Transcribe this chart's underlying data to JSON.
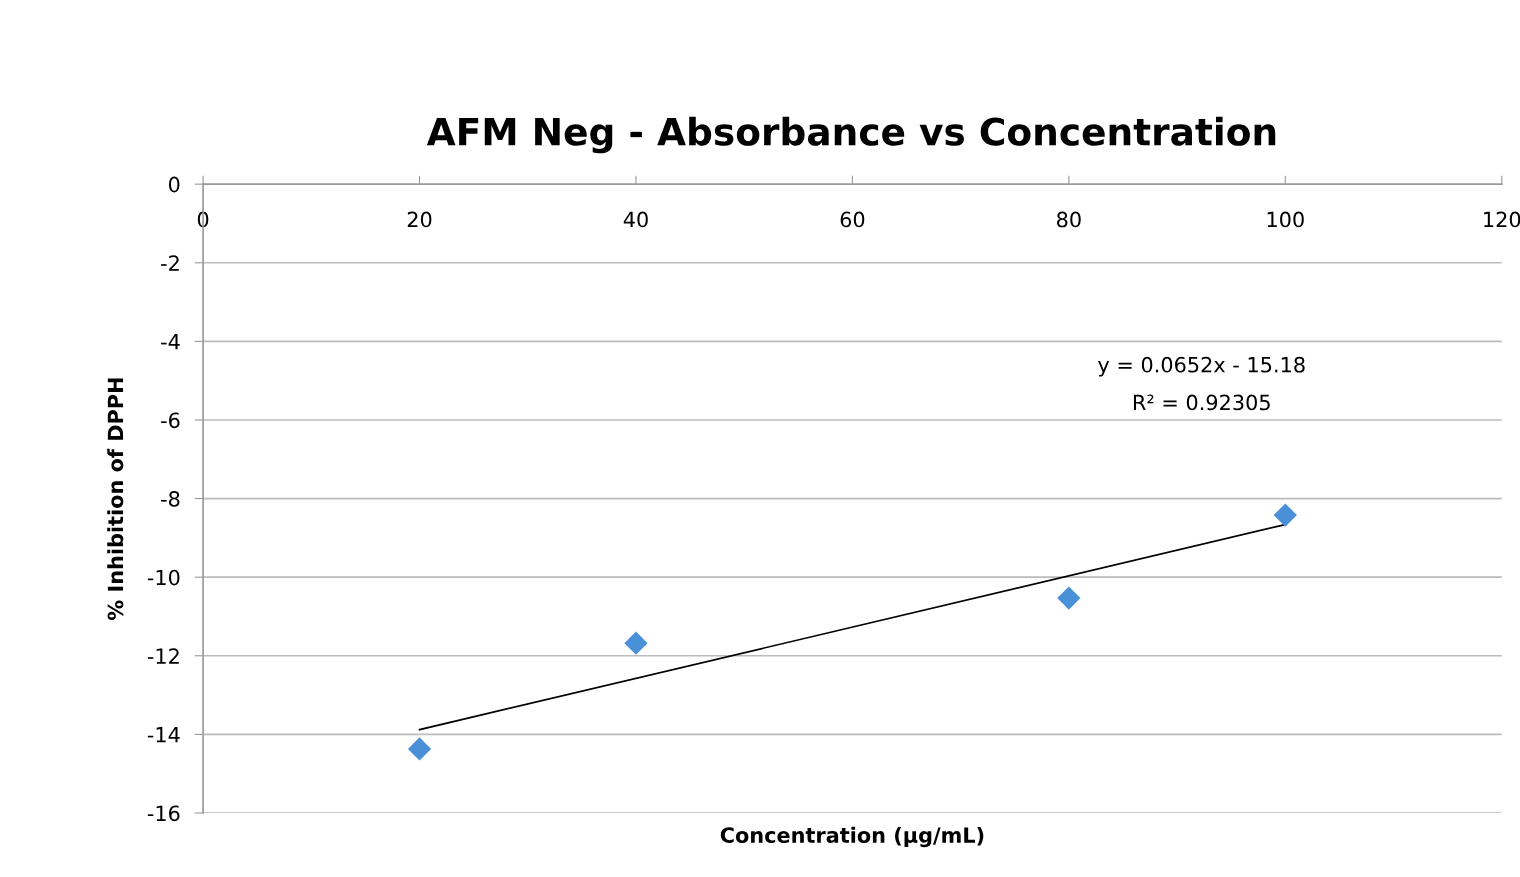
{
  "chart_data": {
    "type": "scatter",
    "title": "AFM Neg - Absorbance vs Concentration",
    "xlabel": "Concentration (µg/mL)",
    "ylabel": "% Inhibition of DPPH",
    "x": [
      20,
      40,
      80,
      100
    ],
    "series": [
      {
        "color": "#4a90d9",
        "marker": "diamond",
        "values": [
          -14.37,
          -11.68,
          -10.53,
          -8.42
        ]
      },
      {
        "type": "line",
        "color": "#000000",
        "marker": "none",
        "line_style": "solid",
        "x": [
          20,
          100
        ],
        "values": [
          -13.88,
          -8.66
        ]
      }
    ],
    "xlim": [
      0,
      120
    ],
    "xticks": [
      0,
      20,
      40,
      60,
      80,
      100,
      120
    ],
    "ylim": [
      -16,
      0
    ],
    "yticks": [
      -16,
      -14,
      -12,
      -10,
      -8,
      -6,
      -4,
      -2,
      0
    ],
    "grid": "y",
    "legend": false,
    "annotations": [
      "y = 0.0652x - 15.18",
      "R² = 0.92305"
    ]
  }
}
